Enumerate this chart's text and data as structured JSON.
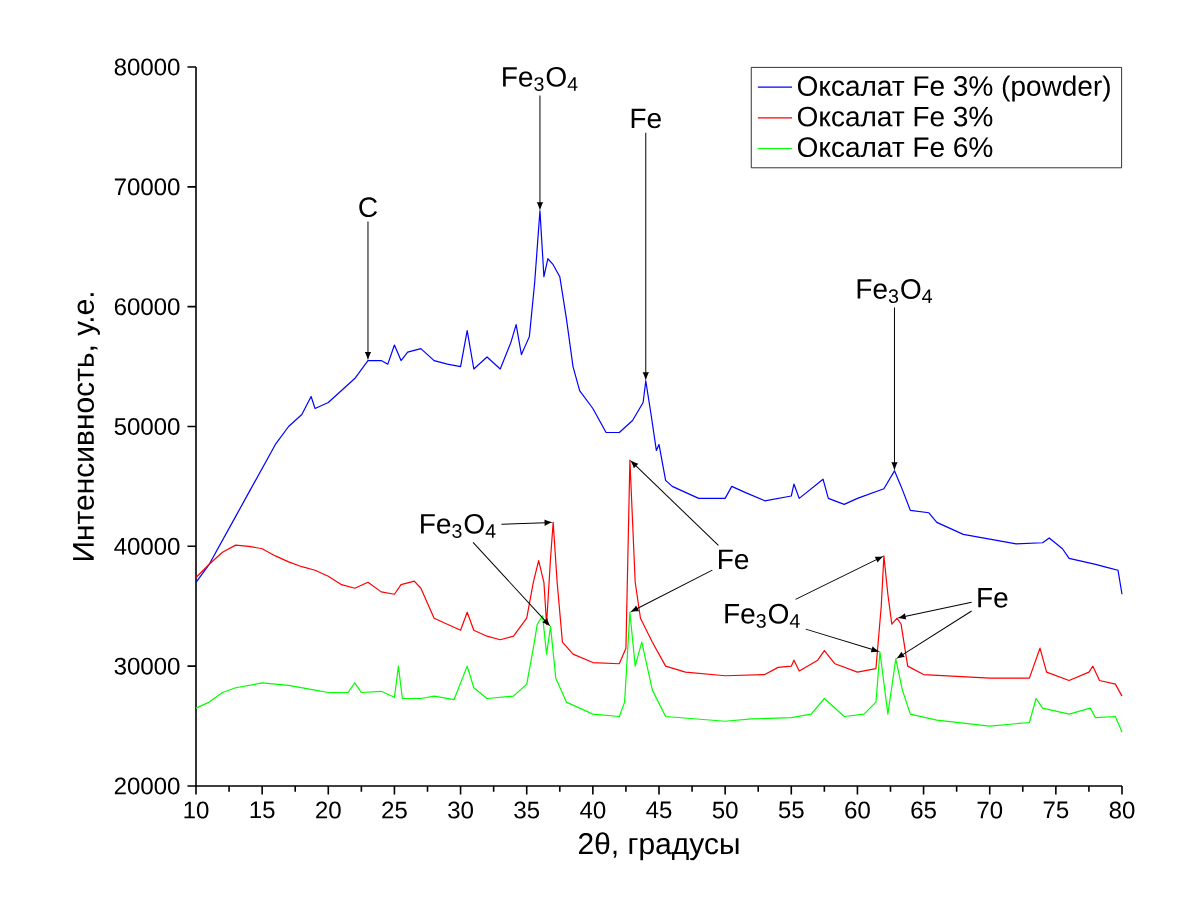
{
  "chart_data": {
    "type": "line",
    "xlabel": "2θ, градусы",
    "ylabel": "Интенсивность, у.е.",
    "xlim": [
      10,
      80
    ],
    "ylim": [
      20000,
      80000
    ],
    "xticks": [
      10,
      15,
      20,
      25,
      30,
      35,
      40,
      45,
      50,
      55,
      60,
      65,
      70,
      75,
      80
    ],
    "yticks": [
      20000,
      30000,
      40000,
      50000,
      60000,
      70000,
      80000
    ],
    "legend": "top right",
    "series": [
      {
        "name": "Оксалат Fe 3% (powder)",
        "color": "#0000ff",
        "x": [
          10,
          11,
          12,
          13,
          14,
          15,
          16,
          17,
          18,
          18.7,
          19,
          20,
          21,
          22,
          23,
          24,
          24.5,
          25,
          25.5,
          26,
          27,
          28,
          29,
          30,
          30.5,
          31,
          32,
          33,
          33.8,
          34.2,
          34.6,
          35.2,
          35.6,
          36,
          36.3,
          36.6,
          37,
          37.5,
          38,
          38.5,
          39,
          40,
          41,
          42,
          43,
          43.8,
          44,
          44.4,
          44.8,
          45,
          45.5,
          46,
          47,
          48,
          50,
          50.5,
          51.5,
          53,
          55,
          55.2,
          55.6,
          57.4,
          57.8,
          59,
          60,
          62,
          62.8,
          63.3,
          64,
          65.4,
          66,
          68,
          70,
          72,
          74,
          74.5,
          75.5,
          76,
          78,
          79,
          79.7,
          80
        ],
        "values": [
          37000,
          38500,
          40500,
          42500,
          44500,
          46500,
          48500,
          50000,
          51000,
          52500,
          51500,
          52000,
          53000,
          54000,
          55500,
          55500,
          55200,
          56800,
          55500,
          56200,
          56500,
          55500,
          55200,
          55000,
          58000,
          54800,
          55800,
          54800,
          57000,
          58500,
          56000,
          57500,
          62000,
          68000,
          62500,
          64000,
          63500,
          62500,
          59000,
          55000,
          53000,
          51500,
          49500,
          49500,
          50500,
          52000,
          53800,
          51000,
          48000,
          48500,
          45500,
          45000,
          44500,
          44000,
          44000,
          45000,
          44500,
          43800,
          44200,
          45200,
          44000,
          45600,
          44000,
          43500,
          44000,
          44800,
          46300,
          45000,
          43000,
          42800,
          42000,
          41000,
          40600,
          40200,
          40300,
          40700,
          39800,
          39000,
          38500,
          38200,
          38000,
          36000
        ]
      },
      {
        "name": "Оксалат Fe 3%",
        "color": "#ff0000",
        "x": [
          10,
          11,
          12,
          13,
          14,
          15,
          16,
          17,
          18,
          19,
          20,
          21,
          22,
          23,
          24,
          25,
          25.5,
          26.5,
          27,
          28,
          29,
          30,
          30.5,
          31,
          32,
          33,
          34,
          35,
          35.5,
          35.9,
          36.3,
          36.5,
          36.8,
          37,
          37.3,
          37.7,
          38.5,
          40,
          42,
          42.5,
          42.8,
          43.2,
          43.6,
          44.5,
          45.5,
          47,
          50,
          53,
          54,
          55,
          55.2,
          55.6,
          57,
          57.5,
          58.3,
          60,
          61.4,
          61.8,
          62,
          62.3,
          62.6,
          63,
          63.3,
          63.8,
          65,
          70,
          73,
          73.8,
          74.3,
          76,
          77.5,
          77.8,
          78.3,
          79.5,
          80
        ],
        "values": [
          37400,
          38500,
          39500,
          40100,
          40000,
          39800,
          39200,
          38700,
          38300,
          38000,
          37500,
          36800,
          36500,
          37000,
          36200,
          36000,
          36800,
          37100,
          36500,
          34000,
          33500,
          33000,
          34500,
          33000,
          32500,
          32200,
          32500,
          34000,
          37000,
          38800,
          37000,
          33500,
          39000,
          42000,
          37000,
          32000,
          31000,
          30300,
          30200,
          31500,
          47200,
          37000,
          34000,
          32000,
          30000,
          29500,
          29200,
          29300,
          29900,
          30000,
          30500,
          29600,
          30500,
          31300,
          30200,
          29500,
          29800,
          35000,
          39200,
          36000,
          33500,
          34000,
          33500,
          30000,
          29300,
          29000,
          29000,
          31500,
          29500,
          28800,
          29500,
          30000,
          28800,
          28500,
          27500
        ]
      },
      {
        "name": "Оксалат Fe 6%",
        "color": "#00ff00",
        "x": [
          10,
          11,
          12,
          13,
          15,
          17,
          19,
          20,
          21.5,
          22,
          22.5,
          24,
          25,
          25.3,
          25.6,
          27,
          28,
          29.5,
          30.5,
          31,
          32,
          34,
          35,
          35.5,
          35.8,
          36.2,
          36.5,
          36.8,
          37.2,
          38,
          40,
          42,
          42.4,
          42.8,
          43.2,
          43.7,
          44.5,
          45.5,
          50,
          52,
          55,
          56.5,
          57.5,
          58,
          59,
          60.5,
          61.4,
          61.7,
          62.3,
          62.9,
          63.4,
          64,
          66,
          70,
          73,
          73.5,
          74,
          76,
          77.6,
          78,
          79.5,
          80
        ],
        "values": [
          26500,
          27000,
          27800,
          28200,
          28600,
          28400,
          28000,
          27800,
          27800,
          28600,
          27800,
          27900,
          27400,
          30000,
          27300,
          27300,
          27500,
          27200,
          30000,
          28200,
          27300,
          27500,
          28500,
          31500,
          33500,
          34200,
          31000,
          33300,
          29000,
          27000,
          26000,
          25800,
          27000,
          34500,
          30000,
          32000,
          28000,
          25800,
          25400,
          25600,
          25700,
          26000,
          27300,
          26800,
          25800,
          26000,
          27000,
          31200,
          26000,
          30600,
          28000,
          26000,
          25500,
          25000,
          25300,
          27300,
          26500,
          26000,
          26500,
          25700,
          25800,
          24500
        ]
      }
    ],
    "annotations": [
      {
        "text": "C",
        "x": 23,
        "y": 55500
      },
      {
        "text": "Fe$_{3}$O$_{4}$",
        "x": 36,
        "y": 68000
      },
      {
        "text": "Fe",
        "x": 44,
        "y": 53800
      },
      {
        "text": "Fe$_{3}$O$_{4}$",
        "x": 62.8,
        "y": 46300
      },
      {
        "text": "Fe$_{3}$O$_{4}$",
        "x": 37,
        "y": 42000
      },
      {
        "text": "Fe",
        "x": 42.8,
        "y": 47200
      },
      {
        "text": "Fe$_{3}$O$_{4}$",
        "x": 62,
        "y": 39200
      },
      {
        "text": "Fe",
        "x": 63,
        "y": 34000
      }
    ]
  }
}
